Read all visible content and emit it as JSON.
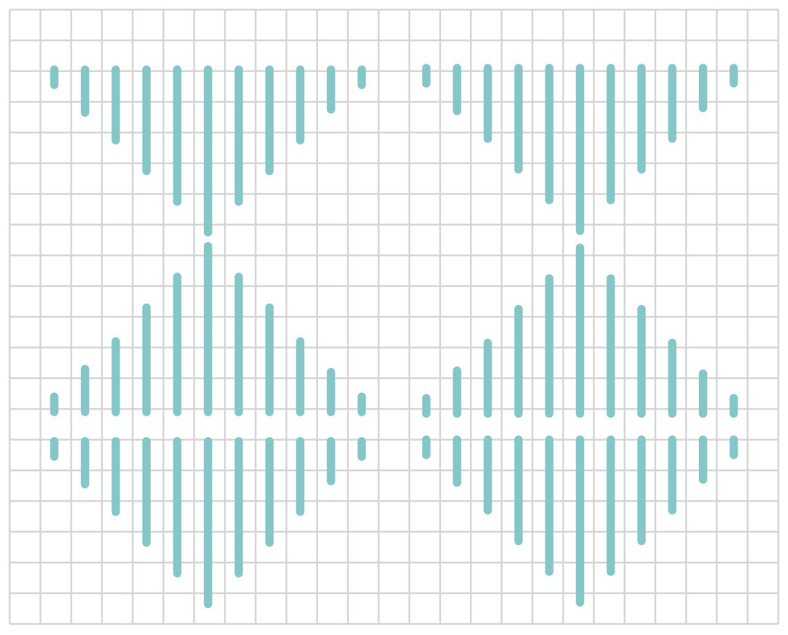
{
  "colors": {
    "background": "#ffffff",
    "grid": "#d4d4d4",
    "bar": "#84c7c9"
  },
  "grid": {
    "columns": 25,
    "rows": 20
  },
  "pattern": {
    "shape": "rounded-vertical-bars",
    "panels": [
      {
        "name": "top-left",
        "direction": "down",
        "lengths": [
          0.5,
          1.4,
          2.3,
          3.3,
          4.3,
          5.3,
          4.3,
          3.3,
          2.3,
          1.3,
          0.5
        ]
      },
      {
        "name": "top-right",
        "direction": "down",
        "lengths": [
          0.5,
          1.4,
          2.3,
          3.3,
          4.3,
          5.3,
          4.3,
          3.3,
          2.3,
          1.3,
          0.5
        ]
      },
      {
        "name": "bottom-left-upper",
        "direction": "up",
        "lengths": [
          0.5,
          1.4,
          2.3,
          3.4,
          4.4,
          5.4,
          4.4,
          3.4,
          2.3,
          1.3,
          0.5
        ]
      },
      {
        "name": "bottom-right-upper",
        "direction": "up",
        "lengths": [
          0.5,
          1.4,
          2.3,
          3.4,
          4.4,
          5.4,
          4.4,
          3.4,
          2.3,
          1.3,
          0.5
        ]
      },
      {
        "name": "bottom-left-lower",
        "direction": "down",
        "lengths": [
          0.5,
          1.4,
          2.3,
          3.3,
          4.3,
          5.3,
          4.3,
          3.3,
          2.3,
          1.3,
          0.5
        ]
      },
      {
        "name": "bottom-right-lower",
        "direction": "down",
        "lengths": [
          0.5,
          1.4,
          2.3,
          3.3,
          4.3,
          5.3,
          4.3,
          3.3,
          2.3,
          1.3,
          0.5
        ]
      }
    ]
  }
}
